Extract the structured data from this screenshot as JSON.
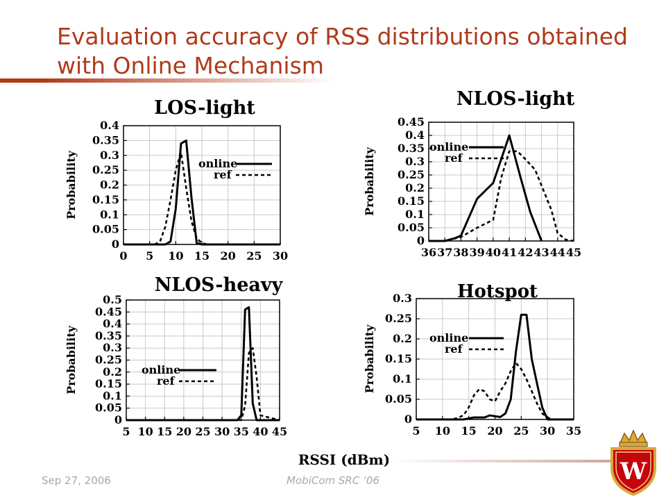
{
  "slide": {
    "title": "Evaluation accuracy of RSS distributions obtained with Online Mechanism",
    "footer_date": "Sep 27, 2006",
    "footer_event": "MobiCom SRC ‘06",
    "shared_xlabel": "RSSI (dBm)",
    "logo_letter": "W",
    "colors": {
      "title": "#b03a1a",
      "footer": "#a8a8a8",
      "logo_red": "#c5050c",
      "logo_gold": "#d9a93a"
    },
    "logo_icon": "university-crest-icon"
  },
  "chart_data": [
    {
      "type": "line",
      "title": "LOS-light",
      "ylabel": "Probability",
      "xlabel": "",
      "xlim": [
        0,
        30
      ],
      "ylim": [
        0,
        0.4
      ],
      "xticks": [
        "0",
        "5",
        "10",
        "15",
        "20",
        "25",
        "30"
      ],
      "yticks": [
        "0",
        "0.05",
        "0.1",
        "0.15",
        "0.2",
        "0.25",
        "0.3",
        "0.35",
        "0.4"
      ],
      "grid": true,
      "legend": "right",
      "series": [
        {
          "name": "online",
          "style": "solid",
          "x": [
            0,
            6,
            8,
            9,
            10,
            11,
            12,
            13,
            14,
            15,
            30
          ],
          "y": [
            0,
            0,
            0,
            0.01,
            0.12,
            0.34,
            0.35,
            0.16,
            0.005,
            0,
            0
          ]
        },
        {
          "name": "ref",
          "style": "dashed",
          "x": [
            0,
            3,
            6,
            7,
            8,
            9,
            10,
            11,
            12,
            13,
            14,
            15,
            16,
            17,
            30
          ],
          "y": [
            0,
            0,
            0,
            0.01,
            0.06,
            0.15,
            0.25,
            0.31,
            0.19,
            0.08,
            0.02,
            0.005,
            0,
            0,
            0
          ]
        }
      ]
    },
    {
      "type": "line",
      "title": "NLOS-light",
      "ylabel": "Probability",
      "xlabel": "",
      "xlim": [
        36,
        45
      ],
      "ylim": [
        0,
        0.45
      ],
      "xticks": [
        "36",
        "37",
        "38",
        "39",
        "40",
        "41",
        "42",
        "43",
        "44",
        "45"
      ],
      "yticks": [
        "0",
        "0.05",
        "0.1",
        "0.15",
        "0.2",
        "0.25",
        "0.3",
        "0.35",
        "0.4",
        "0.45"
      ],
      "grid": true,
      "legend": "top-left",
      "series": [
        {
          "name": "online",
          "style": "solid",
          "x": [
            36,
            37,
            37.6,
            38,
            39,
            39.5,
            40,
            41,
            41.7,
            42.3,
            43
          ],
          "y": [
            0,
            0,
            0.01,
            0.02,
            0.16,
            0.19,
            0.22,
            0.4,
            0.24,
            0.11,
            0
          ]
        },
        {
          "name": "ref",
          "style": "dashed",
          "x": [
            36,
            37,
            38,
            39,
            40,
            40.5,
            41,
            41.5,
            42,
            42.6,
            43,
            43.6,
            44,
            44.5,
            45
          ],
          "y": [
            0,
            0,
            0.015,
            0.05,
            0.08,
            0.24,
            0.34,
            0.34,
            0.31,
            0.27,
            0.21,
            0.12,
            0.03,
            0.005,
            0
          ]
        }
      ]
    },
    {
      "type": "line",
      "title": "NLOS-heavy",
      "ylabel": "Probability",
      "xlabel": "",
      "xlim": [
        5,
        45
      ],
      "ylim": [
        0,
        0.5
      ],
      "xticks": [
        "5",
        "10",
        "15",
        "20",
        "25",
        "30",
        "35",
        "40",
        "45"
      ],
      "yticks": [
        "0",
        "0.05",
        "0.1",
        "0.15",
        "0.2",
        "0.25",
        "0.3",
        "0.35",
        "0.4",
        "0.45",
        "0.5"
      ],
      "grid": true,
      "legend": "center-left",
      "series": [
        {
          "name": "online",
          "style": "solid",
          "x": [
            5,
            34,
            35,
            36,
            37,
            38,
            39,
            45
          ],
          "y": [
            0,
            0,
            0.02,
            0.46,
            0.47,
            0.07,
            0,
            0
          ]
        },
        {
          "name": "ref",
          "style": "dashed",
          "x": [
            5,
            35,
            36,
            37,
            38,
            39,
            40,
            45
          ],
          "y": [
            0,
            0,
            0.06,
            0.28,
            0.3,
            0.18,
            0.02,
            0
          ]
        }
      ]
    },
    {
      "type": "line",
      "title": "Hotspot",
      "ylabel": "Probability",
      "xlabel": "",
      "xlim": [
        5,
        35
      ],
      "ylim": [
        0,
        0.3
      ],
      "xticks": [
        "5",
        "10",
        "15",
        "20",
        "25",
        "30",
        "35"
      ],
      "yticks": [
        "0",
        "0.05",
        "0.1",
        "0.15",
        "0.2",
        "0.25",
        "0.3"
      ],
      "grid": true,
      "legend": "center-left",
      "series": [
        {
          "name": "online",
          "style": "solid",
          "x": [
            5,
            14,
            16,
            18,
            19,
            20,
            21,
            22,
            23,
            24,
            25,
            26,
            27,
            28,
            29,
            30,
            35
          ],
          "y": [
            0,
            0,
            0.005,
            0.005,
            0.01,
            0.008,
            0.006,
            0.015,
            0.05,
            0.17,
            0.26,
            0.26,
            0.15,
            0.09,
            0.03,
            0,
            0
          ]
        },
        {
          "name": "ref",
          "style": "dashed",
          "x": [
            5,
            12,
            14,
            15,
            16,
            17,
            18,
            19,
            20,
            21,
            22,
            23,
            24,
            25,
            26,
            27,
            28,
            29,
            30,
            31,
            35
          ],
          "y": [
            0,
            0,
            0.01,
            0.03,
            0.06,
            0.075,
            0.07,
            0.05,
            0.045,
            0.07,
            0.09,
            0.12,
            0.14,
            0.125,
            0.1,
            0.07,
            0.04,
            0.015,
            0.005,
            0,
            0
          ]
        }
      ]
    }
  ]
}
